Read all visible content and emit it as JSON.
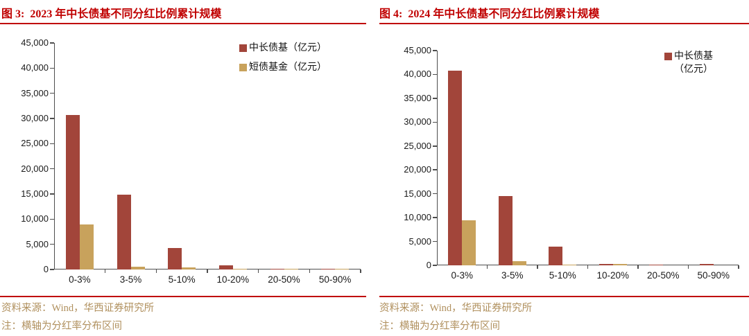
{
  "colors": {
    "title_red": "#C00000",
    "rule_red": "#C00000",
    "bar_red": "#A2453A",
    "bar_tan": "#C8A25C",
    "source_gold": "#B0905E",
    "axis": "#4D4D4D",
    "tick_label": "#1A1A1A"
  },
  "chart_data": [
    {
      "type": "bar",
      "title": "图 3:  2023 年中长债基不同分红比例累计规模",
      "categories": [
        "0-3%",
        "3-5%",
        "5-10%",
        "10-20%",
        "20-50%",
        "50-90%"
      ],
      "series": [
        {
          "name": "中长债基（亿元）",
          "color": "#A2453A",
          "in_legend": true,
          "legend_lines": [
            "中长债基（亿元）"
          ],
          "values": [
            30700,
            14900,
            4200,
            800,
            150,
            150
          ]
        },
        {
          "name": "短债基金（亿元）",
          "color": "#C8A25C",
          "in_legend": true,
          "legend_lines": [
            "短债基金（亿元）"
          ],
          "values": [
            9000,
            550,
            400,
            120,
            60,
            60
          ]
        }
      ],
      "xlabel": "",
      "ylabel": "",
      "ylim": [
        0,
        45000
      ],
      "ytick_step": 5000,
      "grid": false,
      "legend_position": "top-right",
      "source": "资料来源：Wind，华西证券研究所",
      "note": "注：横轴为分红率分布区间"
    },
    {
      "type": "bar",
      "title": "图 4:  2024 年中长债基不同分红比例累计规模",
      "categories": [
        "0-3%",
        "3-5%",
        "5-10%",
        "10-20%",
        "20-50%",
        "50-90%"
      ],
      "series": [
        {
          "name": "中长债基（亿元）",
          "color": "#A2453A",
          "in_legend": true,
          "legend_lines": [
            "中长债基",
            "（亿元）"
          ],
          "values": [
            40800,
            14500,
            3900,
            250,
            150,
            250
          ]
        },
        {
          "name": "短债基金（亿元）",
          "color": "#C8A25C",
          "in_legend": false,
          "legend_lines": [],
          "values": [
            9400,
            800,
            100,
            250,
            0,
            0
          ]
        }
      ],
      "xlabel": "",
      "ylabel": "",
      "ylim": [
        0,
        45000
      ],
      "ytick_step": 5000,
      "grid": false,
      "legend_position": "top-right",
      "source": "资料来源：Wind，华西证券研究所",
      "note": "注：横轴为分红率分布区间"
    }
  ]
}
